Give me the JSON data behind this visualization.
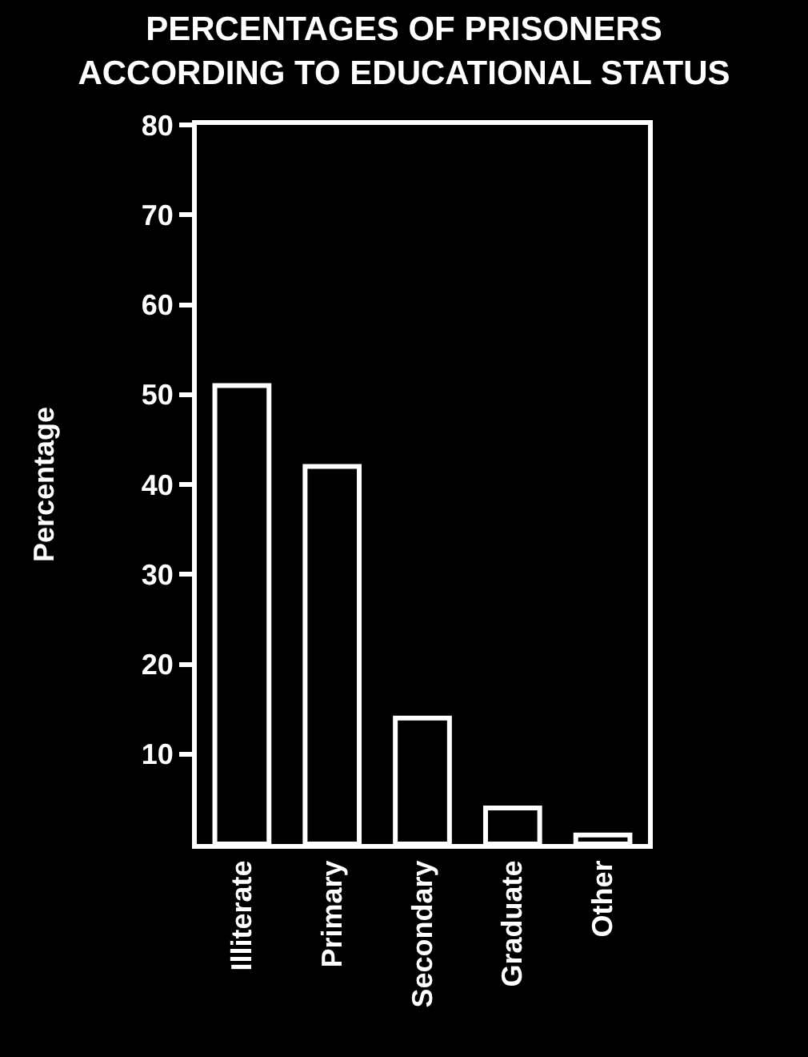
{
  "chart_data": {
    "type": "bar",
    "title": "PERCENTAGES OF PRISONERS\nACCORDING TO EDUCATIONAL STATUS",
    "ylabel": "Percentage",
    "categories": [
      "Illiterate",
      "Primary",
      "Secondary",
      "Graduate",
      "Other"
    ],
    "values": [
      51,
      42,
      14,
      4,
      1
    ],
    "color": "#ffffff",
    "ylim": [
      0,
      80
    ],
    "yticks": [
      10,
      20,
      30,
      40,
      50,
      60,
      70,
      80
    ]
  }
}
